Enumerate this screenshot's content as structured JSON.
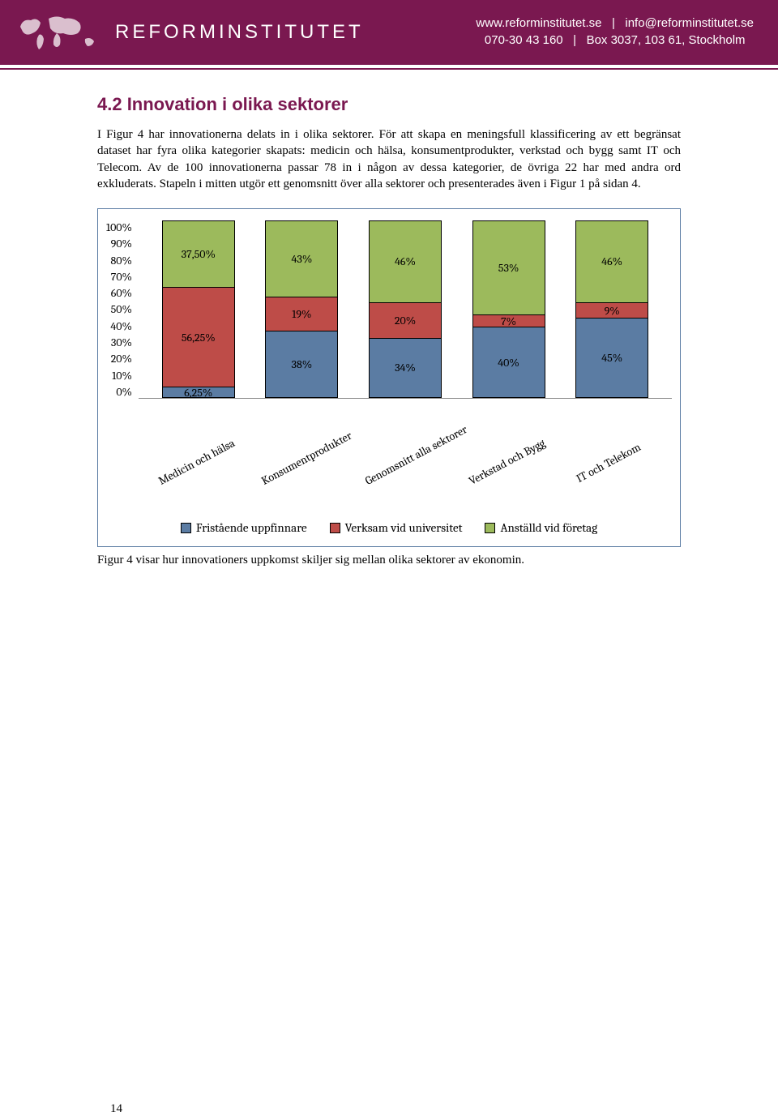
{
  "header": {
    "brand": "REFORMINSTITUTET",
    "contact_line1_left": "www.reforminstitutet.se",
    "contact_line1_right": "info@reforminstitutet.se",
    "contact_line2_left": "070-30 43 160",
    "contact_line2_right": "Box 3037, 103 61, Stockholm",
    "brand_color": "#7a1850",
    "text_color": "#ffffff"
  },
  "section": {
    "title": "4.2 Innovation i olika sektorer",
    "title_color": "#7a1850",
    "title_fontsize": 22,
    "paragraph": "I Figur 4 har innovationerna delats in i olika sektorer. För att skapa en meningsfull klassificering av ett begränsat dataset har fyra olika kategorier skapats: medicin och hälsa, konsumentprodukter, verkstad och bygg samt IT och Telecom. Av de 100 innovationerna passar 78 in i någon av dessa kategorier, de övriga 22 har med andra ord exkluderats. Stapeln i mitten utgör ett genomsnitt över alla sektorer och presenterades även i Figur 1 på sidan 4."
  },
  "chart": {
    "type": "stacked-bar",
    "background_color": "#ffffff",
    "border_color": "#5b7ca3",
    "font_family": "Cambria",
    "label_fontsize": 14,
    "ylim": [
      0,
      100
    ],
    "ytick_step": 10,
    "y_ticks": [
      "100%",
      "90%",
      "80%",
      "70%",
      "60%",
      "50%",
      "40%",
      "30%",
      "20%",
      "10%",
      "0%"
    ],
    "categories": [
      "Medicin och hälsa",
      "Konsumentprodukter",
      "Genomsnitt alla sektorer",
      "Verkstad och Bygg",
      "IT och Telekom"
    ],
    "series": [
      {
        "name": "Fristående uppfinnare",
        "color": "#5b7ca3"
      },
      {
        "name": "Verksam vid universitet",
        "color": "#be4c48"
      },
      {
        "name": "Anställd vid företag",
        "color": "#9cba5c"
      }
    ],
    "bars": [
      {
        "segments": [
          {
            "v": 6.25,
            "label": "6,25%"
          },
          {
            "v": 56.25,
            "label": "56,25%"
          },
          {
            "v": 37.5,
            "label": "37,50%"
          }
        ]
      },
      {
        "segments": [
          {
            "v": 38,
            "label": "38%"
          },
          {
            "v": 19,
            "label": "19%"
          },
          {
            "v": 43,
            "label": "43%"
          }
        ]
      },
      {
        "segments": [
          {
            "v": 34,
            "label": "34%"
          },
          {
            "v": 20,
            "label": "20%"
          },
          {
            "v": 46,
            "label": "46%"
          }
        ]
      },
      {
        "segments": [
          {
            "v": 40,
            "label": "40%"
          },
          {
            "v": 7,
            "label": "7%"
          },
          {
            "v": 53,
            "label": "53%"
          }
        ]
      },
      {
        "segments": [
          {
            "v": 45,
            "label": "45%"
          },
          {
            "v": 9,
            "label": "9%"
          },
          {
            "v": 46,
            "label": "46%"
          }
        ]
      }
    ],
    "caption": "Figur 4 visar hur innovationers uppkomst skiljer sig mellan olika sektorer av ekonomin."
  },
  "page_number": "14"
}
